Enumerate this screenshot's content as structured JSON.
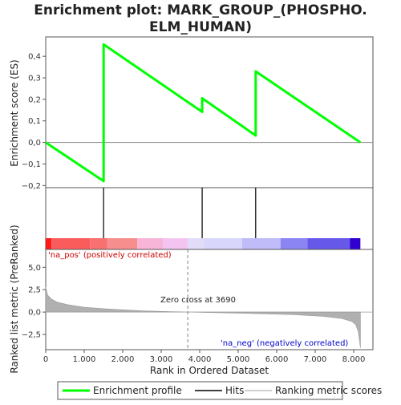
{
  "chart_data": {
    "type": "line",
    "title_lines": [
      "Enrichment plot: MARK_GROUP_(PHOSPHO.",
      "ELM_HUMAN)"
    ],
    "panels": {
      "enrichment": {
        "ylabel": "Enrichment score (ES)",
        "ylim": [
          -0.21,
          0.49
        ],
        "yticks": [
          -0.2,
          -0.1,
          0.0,
          0.1,
          0.2,
          0.3,
          0.4
        ],
        "ytick_labels": [
          "−0,2",
          "−0,1",
          "0,0",
          "0,1",
          "0,2",
          "0,3",
          "0,4"
        ],
        "series": [
          {
            "name": "Enrichment profile",
            "color": "#00ff00",
            "x": [
              0,
              1504,
              1505,
              4064,
              4065,
              5454,
              5455,
              8174
            ],
            "y": [
              0.0,
              -0.18,
              0.455,
              0.142,
              0.205,
              0.032,
              0.33,
              0.0
            ]
          }
        ]
      },
      "hits": {
        "positions": [
          1504,
          4064,
          5454
        ],
        "color_bands": [
          {
            "x0": 0,
            "x1": 150,
            "color": "#ff1a1a"
          },
          {
            "x0": 150,
            "x1": 1150,
            "color": "#fa5c5c"
          },
          {
            "x0": 1150,
            "x1": 1600,
            "color": "#f87070"
          },
          {
            "x0": 1600,
            "x1": 2380,
            "color": "#f78e8e"
          },
          {
            "x0": 2380,
            "x1": 3050,
            "color": "#f8b5d8"
          },
          {
            "x0": 3050,
            "x1": 3690,
            "color": "#f4c4f0"
          },
          {
            "x0": 3690,
            "x1": 4100,
            "color": "#e2dcf8"
          },
          {
            "x0": 4100,
            "x1": 5100,
            "color": "#d8d6fb"
          },
          {
            "x0": 5100,
            "x1": 6100,
            "color": "#c0bcf9"
          },
          {
            "x0": 6100,
            "x1": 6800,
            "color": "#8b85f3"
          },
          {
            "x0": 6800,
            "x1": 7900,
            "color": "#6658e8"
          },
          {
            "x0": 7900,
            "x1": 8174,
            "color": "#3000d0"
          }
        ]
      },
      "ranked": {
        "ylabel": "Ranked list metric (PreRanked)",
        "ylim": [
          -4.2,
          7.0
        ],
        "yticks": [
          -2.5,
          0.0,
          2.5,
          5.0
        ],
        "ytick_labels": [
          "−2,5",
          "0,0",
          "2,5",
          "5,0"
        ],
        "profile_x": [
          0,
          50,
          150,
          300,
          600,
          1000,
          1500,
          2000,
          2500,
          3000,
          3690,
          4500,
          5500,
          6500,
          7200,
          7700,
          7950,
          8050,
          8120,
          8174
        ],
        "profile_y": [
          2.8,
          1.9,
          1.45,
          1.1,
          0.8,
          0.55,
          0.38,
          0.25,
          0.15,
          0.07,
          0.0,
          -0.08,
          -0.18,
          -0.3,
          -0.48,
          -0.72,
          -1.05,
          -1.4,
          -2.2,
          -4.0
        ],
        "zero_cross_label": "Zero cross at 3690",
        "zero_cross": 3690,
        "pos_label": "'na_pos' (positively correlated)",
        "neg_label": "'na_neg' (negatively correlated)"
      }
    },
    "x_axis": {
      "xlabel": "Rank in Ordered Dataset",
      "xlim": [
        0,
        8500
      ],
      "xticks": [
        0,
        1000,
        2000,
        3000,
        4000,
        5000,
        6000,
        7000,
        8000
      ],
      "xtick_labels": [
        "0",
        "1.000",
        "2.000",
        "3.000",
        "4.000",
        "5.000",
        "6.000",
        "7.000",
        "8.000"
      ]
    },
    "legend": {
      "placement": "bottom",
      "items": [
        {
          "label": "Enrichment profile",
          "color": "#00ff00",
          "kind": "thick-line"
        },
        {
          "label": "Hits",
          "color": "#000000",
          "kind": "line"
        },
        {
          "label": "Ranking metric scores",
          "color": "#c0c0c0",
          "kind": "line"
        }
      ]
    },
    "colors": {
      "pos_label": "#cc0000",
      "neg_label": "#0000cc",
      "zero_line": "#808080",
      "metric_fill": "#b0b0b0"
    }
  }
}
